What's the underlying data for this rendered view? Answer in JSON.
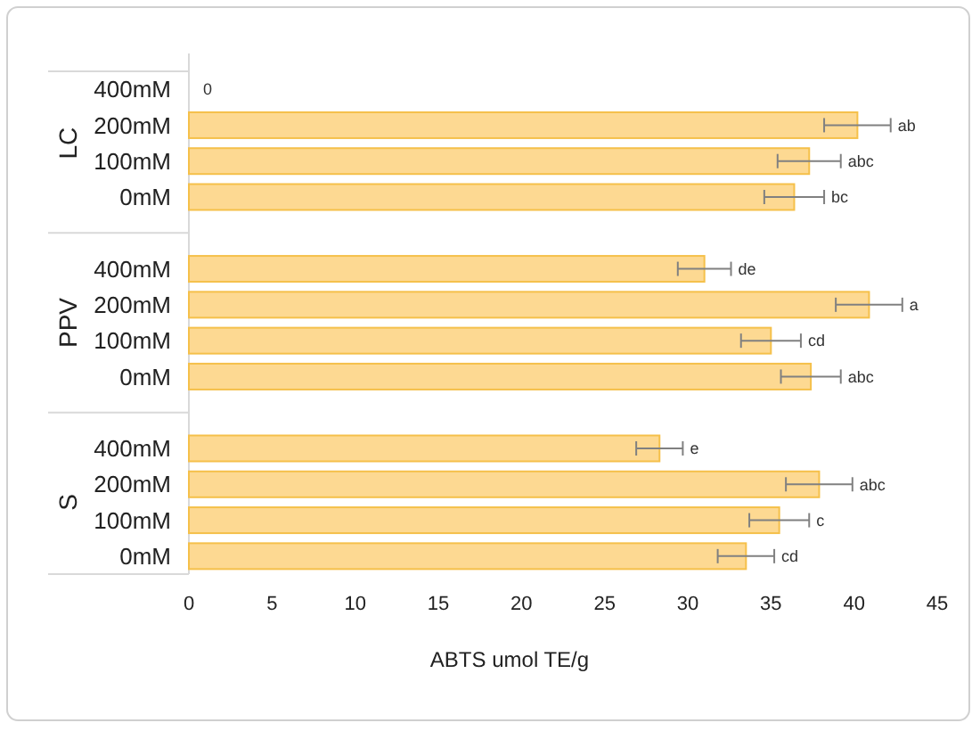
{
  "chart_data": {
    "type": "bar",
    "orientation": "horizontal",
    "xlabel": "ABTS umol TE/g",
    "categories": [
      "400mM",
      "200mM",
      "100mM",
      "0mM",
      "400mM",
      "200mM",
      "100mM",
      "0mM",
      "400mM",
      "200mM",
      "100mM",
      "0mM"
    ],
    "values": [
      0,
      40.2,
      37.3,
      36.4,
      31.0,
      40.9,
      35.0,
      37.4,
      28.3,
      37.9,
      35.5,
      33.5
    ],
    "errors": [
      null,
      2.0,
      1.9,
      1.8,
      1.6,
      2.0,
      1.8,
      1.8,
      1.4,
      2.0,
      1.8,
      1.7
    ],
    "value_labels": [
      "0",
      "ab",
      "abc",
      "bc",
      "de",
      "a",
      "cd",
      "abc",
      "e",
      "abc",
      "c",
      "cd"
    ],
    "annotations": [
      "LC",
      "PPV",
      "S"
    ],
    "color": "#fdd992",
    "xlim": [
      0,
      45
    ],
    "xticks": [
      0,
      5,
      10,
      15,
      20,
      25,
      30,
      35,
      40,
      45
    ],
    "grid": false
  }
}
